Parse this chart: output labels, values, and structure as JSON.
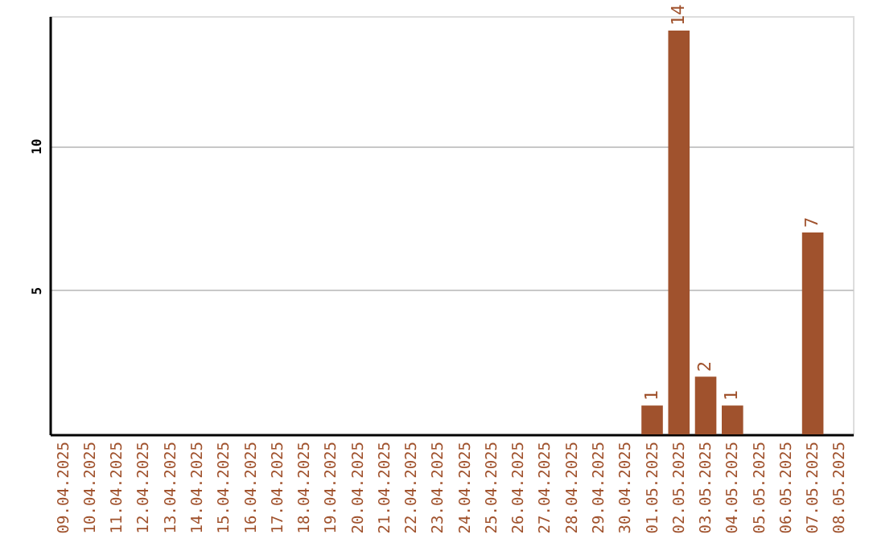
{
  "chart_data": {
    "type": "bar",
    "categories": [
      "09.04.2025",
      "10.04.2025",
      "11.04.2025",
      "12.04.2025",
      "13.04.2025",
      "14.04.2025",
      "15.04.2025",
      "16.04.2025",
      "17.04.2025",
      "18.04.2025",
      "19.04.2025",
      "20.04.2025",
      "21.04.2025",
      "22.04.2025",
      "23.04.2025",
      "24.04.2025",
      "25.04.2025",
      "26.04.2025",
      "27.04.2025",
      "28.04.2025",
      "29.04.2025",
      "30.04.2025",
      "01.05.2025",
      "02.05.2025",
      "03.05.2025",
      "04.05.2025",
      "05.05.2025",
      "06.05.2025",
      "07.05.2025",
      "08.05.2025"
    ],
    "values": [
      0,
      0,
      0,
      0,
      0,
      0,
      0,
      0,
      0,
      0,
      0,
      0,
      0,
      0,
      0,
      0,
      0,
      0,
      0,
      0,
      0,
      0,
      1,
      14,
      2,
      1,
      0,
      0,
      7,
      0
    ],
    "value_labels": [
      null,
      null,
      null,
      null,
      null,
      null,
      null,
      null,
      null,
      null,
      null,
      null,
      null,
      null,
      null,
      null,
      null,
      null,
      null,
      null,
      null,
      null,
      "1",
      "14",
      "2",
      "1",
      null,
      null,
      "7",
      null
    ],
    "color": "#a0522d",
    "ylim": [
      0,
      14.5
    ],
    "yticks": [
      5,
      10
    ],
    "grid": "y"
  }
}
